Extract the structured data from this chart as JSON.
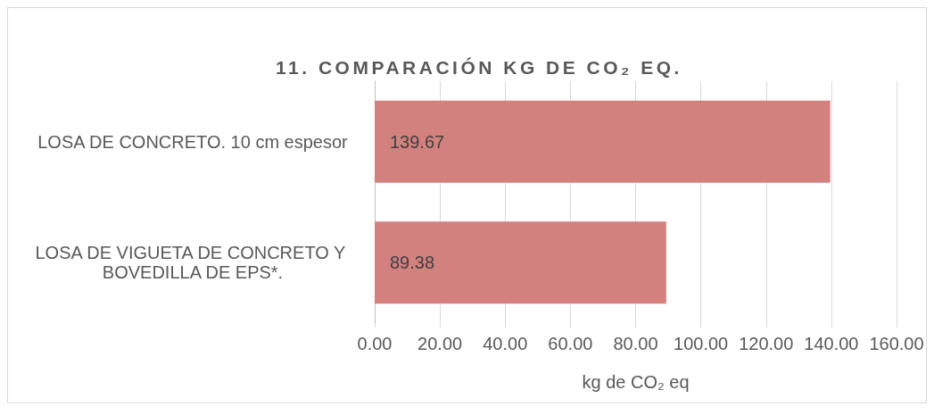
{
  "chart_data": {
    "type": "bar",
    "orientation": "horizontal",
    "title": "11. COMPARACIÓN KG DE CO₂ EQ.",
    "xlabel": "kg de CO₂ eq",
    "categories": [
      "LOSA DE CONCRETO. 10 cm espesor",
      "LOSA DE VIGUETA DE CONCRETO Y BOVEDILLA DE EPS*."
    ],
    "values": [
      139.67,
      89.38
    ],
    "color": "#d3817f",
    "xlim": [
      0,
      160
    ],
    "xticks": [
      {
        "value": 0,
        "label": "0.00"
      },
      {
        "value": 20,
        "label": "20.00"
      },
      {
        "value": 40,
        "label": "40.00"
      },
      {
        "value": 60,
        "label": "60.00"
      },
      {
        "value": 80,
        "label": "80.00"
      },
      {
        "value": 100,
        "label": "100.00"
      },
      {
        "value": 120,
        "label": "120.00"
      },
      {
        "value": 140,
        "label": "140.00"
      },
      {
        "value": 160,
        "label": "160.00"
      }
    ],
    "grid": "x",
    "data_labels": true
  }
}
